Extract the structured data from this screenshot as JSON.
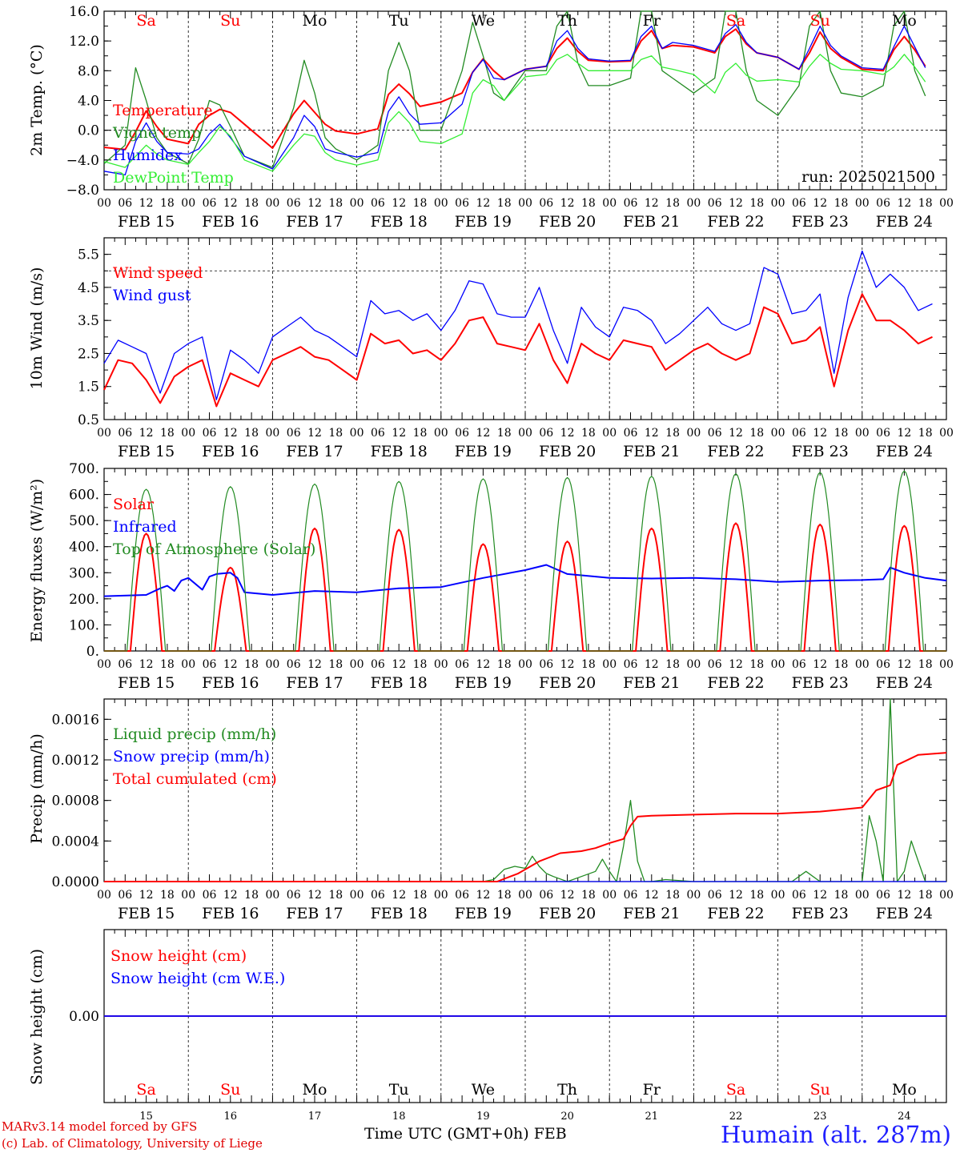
{
  "chart_data": [
    {
      "type": "line",
      "ylabel": "2m Temp. (°C)",
      "ylim": [
        -8,
        16
      ],
      "yticks": [
        "−8.0",
        "−4.0",
        "0.0",
        "4.0",
        "8.0",
        "12.0",
        "16.0"
      ],
      "annotation": "run: 2025021500",
      "day_labels": [
        "Sa",
        "Su",
        "Mo",
        "Tu",
        "We",
        "Th",
        "Fr",
        "Sa",
        "Su",
        "Mo"
      ],
      "x": [
        0,
        6,
        9,
        12,
        15,
        18,
        24,
        27,
        30,
        33,
        36,
        40,
        48,
        54,
        57,
        60,
        63,
        66,
        72,
        78,
        81,
        84,
        87,
        90,
        96,
        102,
        105,
        108,
        111,
        114,
        120,
        126,
        129,
        132,
        135,
        138,
        144,
        150,
        153,
        156,
        159,
        162,
        168,
        174,
        177,
        180,
        183,
        186,
        192,
        198,
        201,
        204,
        207,
        210,
        216,
        222,
        225,
        228,
        231,
        234
      ],
      "series": [
        {
          "name": "Temperature",
          "color": "#ff0000",
          "values": [
            -2.3,
            -2.6,
            -0.2,
            2.6,
            0.5,
            -1.2,
            -1.8,
            0.8,
            2.0,
            2.8,
            2.4,
            0.8,
            -2.4,
            2.2,
            4.0,
            2.4,
            0.8,
            -0.1,
            -0.5,
            0.2,
            4.8,
            6.2,
            4.9,
            3.2,
            3.8,
            5.0,
            7.8,
            9.6,
            8.0,
            6.8,
            8.2,
            8.6,
            11.0,
            12.4,
            10.6,
            9.4,
            9.2,
            9.3,
            12.0,
            13.4,
            11.0,
            11.4,
            11.2,
            10.4,
            12.6,
            13.6,
            11.6,
            10.4,
            9.8,
            8.2,
            10.4,
            13.2,
            11.0,
            9.8,
            8.2,
            8.0,
            10.8,
            12.6,
            10.8,
            8.6
          ]
        },
        {
          "name": "Vigne temp",
          "color": "#228b22",
          "values": [
            -4.5,
            -2.0,
            8.4,
            4.0,
            -1.0,
            -3.0,
            -4.5,
            -1.2,
            4.0,
            3.4,
            0.5,
            -3.5,
            -5.0,
            3.0,
            9.4,
            5.0,
            -1.0,
            -2.5,
            -4.0,
            -2.0,
            8.0,
            11.8,
            8.0,
            0.0,
            0.0,
            8.0,
            14.5,
            10.0,
            5.0,
            4.0,
            8.0,
            8.0,
            14.0,
            18.0,
            9.0,
            6.0,
            6.0,
            7.0,
            16.0,
            18.0,
            8.0,
            7.0,
            5.0,
            7.0,
            16.0,
            18.0,
            8.0,
            4.0,
            2.0,
            6.0,
            14.0,
            18.0,
            8.0,
            5.0,
            4.5,
            6.0,
            14.0,
            17.0,
            8.0,
            4.6
          ]
        },
        {
          "name": "Humidex",
          "color": "#0000ff",
          "values": [
            -5.5,
            -6.0,
            -1.5,
            1.0,
            -1.5,
            -3.0,
            -3.2,
            -2.5,
            -0.5,
            0.8,
            -1.0,
            -3.5,
            -5.2,
            -1.0,
            2.0,
            0.5,
            -2.5,
            -3.0,
            -3.6,
            -3.0,
            2.5,
            4.5,
            2.2,
            0.8,
            1.0,
            3.5,
            7.8,
            9.5,
            7.0,
            6.8,
            8.2,
            8.6,
            12.0,
            13.4,
            11.0,
            9.6,
            9.3,
            9.4,
            12.6,
            14.0,
            11.0,
            11.8,
            11.4,
            10.6,
            13.0,
            14.2,
            11.8,
            10.4,
            9.8,
            8.2,
            11.0,
            14.0,
            11.4,
            10.0,
            8.4,
            8.2,
            11.2,
            14.0,
            11.2,
            8.4
          ]
        },
        {
          "name": "DewPoint Temp",
          "color": "#33ee33",
          "values": [
            -4.2,
            -5.0,
            -3.5,
            -2.0,
            -3.2,
            -4.0,
            -4.6,
            -3.0,
            -1.5,
            0.5,
            -0.8,
            -4.0,
            -5.5,
            -2.0,
            -0.5,
            -0.8,
            -3.0,
            -4.0,
            -4.7,
            -4.0,
            1.0,
            2.5,
            1.0,
            -1.5,
            -1.8,
            -0.5,
            5.0,
            6.8,
            6.0,
            4.0,
            7.2,
            7.5,
            9.5,
            10.2,
            9.0,
            8.0,
            8.0,
            8.0,
            9.5,
            10.0,
            8.5,
            8.2,
            7.5,
            5.0,
            7.8,
            9.0,
            7.4,
            6.6,
            6.8,
            6.5,
            8.6,
            10.2,
            9.0,
            8.2,
            8.0,
            7.5,
            8.5,
            10.2,
            8.5,
            6.5
          ]
        }
      ]
    },
    {
      "type": "line",
      "ylabel": "10m Wind (m/s)",
      "ylim": [
        0.5,
        6
      ],
      "yticks": [
        "0.5",
        "1.5",
        "2.5",
        "3.5",
        "4.5",
        "5.5"
      ],
      "x": [
        0,
        4,
        8,
        12,
        16,
        20,
        24,
        28,
        32,
        36,
        40,
        44,
        48,
        52,
        56,
        60,
        64,
        68,
        72,
        76,
        80,
        84,
        88,
        92,
        96,
        100,
        104,
        108,
        112,
        116,
        120,
        124,
        128,
        132,
        136,
        140,
        144,
        148,
        152,
        156,
        160,
        164,
        168,
        172,
        176,
        180,
        184,
        188,
        192,
        196,
        200,
        204,
        208,
        212,
        216,
        220,
        224,
        228,
        232,
        236
      ],
      "series": [
        {
          "name": "Wind speed",
          "color": "#ff0000",
          "values": [
            1.4,
            2.3,
            2.2,
            1.7,
            1.0,
            1.8,
            2.1,
            2.3,
            0.9,
            1.9,
            1.7,
            1.5,
            2.3,
            2.5,
            2.7,
            2.4,
            2.3,
            2.0,
            1.7,
            3.1,
            2.8,
            2.9,
            2.5,
            2.6,
            2.3,
            2.8,
            3.5,
            3.6,
            2.8,
            2.7,
            2.6,
            3.4,
            2.3,
            1.6,
            2.8,
            2.5,
            2.3,
            2.9,
            2.8,
            2.7,
            2.0,
            2.3,
            2.6,
            2.8,
            2.5,
            2.3,
            2.5,
            3.9,
            3.7,
            2.8,
            2.9,
            3.3,
            1.5,
            3.2,
            4.3,
            3.5,
            3.5,
            3.2,
            2.8,
            3.0
          ]
        },
        {
          "name": "Wind gust",
          "color": "#0000ff",
          "values": [
            2.2,
            2.9,
            2.7,
            2.5,
            1.3,
            2.5,
            2.8,
            3.0,
            1.1,
            2.6,
            2.3,
            1.9,
            3.0,
            3.3,
            3.6,
            3.2,
            3.0,
            2.7,
            2.4,
            4.1,
            3.7,
            3.8,
            3.5,
            3.7,
            3.2,
            3.8,
            4.7,
            4.6,
            3.7,
            3.6,
            3.6,
            4.5,
            3.2,
            2.2,
            3.9,
            3.3,
            3.0,
            3.9,
            3.8,
            3.5,
            2.8,
            3.1,
            3.5,
            3.9,
            3.4,
            3.2,
            3.4,
            5.1,
            4.9,
            3.7,
            3.8,
            4.3,
            1.9,
            4.2,
            5.6,
            4.5,
            4.9,
            4.5,
            3.8,
            4.0
          ]
        }
      ]
    },
    {
      "type": "line",
      "ylabel": "Energy fluxes (W/m²)",
      "ylim": [
        0,
        700
      ],
      "yticks": [
        "0.",
        "100.",
        "200.",
        "300.",
        "400.",
        "500.",
        "600.",
        "700."
      ],
      "series": [
        {
          "name": "Solar",
          "color": "#ff0000",
          "day_peaks": [
            450,
            320,
            470,
            465,
            410,
            420,
            470,
            490,
            485,
            480
          ]
        },
        {
          "name": "Infrared",
          "color": "#0000ff",
          "x": [
            0,
            12,
            16,
            18,
            20,
            22,
            24,
            28,
            30,
            32,
            36,
            38,
            40,
            48,
            60,
            72,
            84,
            96,
            108,
            120,
            126,
            132,
            144,
            156,
            168,
            180,
            192,
            204,
            216,
            222,
            224,
            228,
            234,
            240
          ],
          "values": [
            210,
            215,
            240,
            250,
            230,
            270,
            280,
            235,
            285,
            295,
            300,
            280,
            225,
            215,
            230,
            225,
            240,
            245,
            280,
            310,
            330,
            295,
            280,
            278,
            280,
            275,
            265,
            270,
            272,
            275,
            320,
            300,
            280,
            270
          ]
        },
        {
          "name": "Top of Atmosphere (Solar)",
          "color": "#228b22",
          "day_peaks": [
            620,
            630,
            640,
            650,
            660,
            665,
            670,
            680,
            685,
            690
          ]
        }
      ]
    },
    {
      "type": "line",
      "ylabel": "Precip (mm/h)",
      "ylim": [
        0,
        0.0018
      ],
      "yticks": [
        "0.0000",
        "0.0004",
        "0.0008",
        "0.0012",
        "0.0016"
      ],
      "series": [
        {
          "name": "Liquid precip (mm/h)",
          "color": "#228b22",
          "x": [
            0,
            108,
            111,
            114,
            117,
            120,
            122,
            124,
            126,
            128,
            132,
            136,
            140,
            142,
            144,
            146,
            148,
            150,
            152,
            154,
            156,
            160,
            168,
            180,
            196,
            200,
            204,
            216,
            218,
            220,
            222,
            224,
            226,
            228,
            230,
            232,
            234,
            240
          ],
          "values": [
            0,
            0,
            2e-05,
            0.00012,
            0.00015,
            0.00013,
            0.00025,
            0.00015,
            8e-05,
            5e-05,
            0.0,
            5e-05,
            0.0001,
            0.00022,
            0.0001,
            0.0,
            0.00035,
            0.0008,
            0.0002,
            0.0,
            0.0,
            2e-05,
            0,
            0,
            0.0,
            0.0001,
            0.0,
            0.0,
            0.00065,
            0.0004,
            0.0,
            0.0018,
            0.0,
            0.0001,
            0.0004,
            0.0002,
            0.0,
            0
          ]
        },
        {
          "name": "Snow precip (mm/h)",
          "color": "#0000ff",
          "x": [
            0,
            240
          ],
          "values": [
            0,
            0
          ]
        },
        {
          "name": "Total cumulated (cm)",
          "color": "#ff0000",
          "x": [
            0,
            112,
            118,
            124,
            130,
            136,
            140,
            144,
            148,
            150,
            152,
            156,
            168,
            180,
            192,
            204,
            210,
            216,
            220,
            224,
            226,
            232,
            240
          ],
          "values": [
            0,
            0,
            8e-05,
            0.0002,
            0.00028,
            0.0003,
            0.00033,
            0.00038,
            0.00042,
            0.00055,
            0.00064,
            0.00065,
            0.00066,
            0.00067,
            0.00067,
            0.00069,
            0.00071,
            0.00073,
            0.0009,
            0.00095,
            0.00115,
            0.00125,
            0.00127
          ]
        }
      ]
    },
    {
      "type": "line",
      "ylabel": "Snow height (cm)",
      "yticks": [
        "0.00"
      ],
      "series": [
        {
          "name": "Snow height (cm)",
          "color": "#ff0000",
          "x": [
            0,
            240
          ],
          "values": [
            0,
            0
          ]
        },
        {
          "name": "Snow height (cm W.E.)",
          "color": "#0000ff",
          "x": [
            0,
            240
          ],
          "values": [
            0,
            0
          ]
        }
      ]
    }
  ],
  "x_axis": {
    "hour_ticks": [
      "00",
      "06",
      "12",
      "18"
    ],
    "date_labels": [
      "FEB 15",
      "FEB 16",
      "FEB 17",
      "FEB 18",
      "FEB 19",
      "FEB 20",
      "FEB 21",
      "FEB 22",
      "FEB 23",
      "FEB 24"
    ],
    "day_numbers": [
      "15",
      "16",
      "17",
      "18",
      "19",
      "20",
      "21",
      "22",
      "23",
      "24"
    ],
    "day_names": [
      "Sa",
      "Su",
      "Mo",
      "Tu",
      "We",
      "Th",
      "Fr",
      "Sa",
      "Su",
      "Mo"
    ]
  },
  "colors": {
    "weekend": "#ff0000",
    "weekday": "#000000"
  },
  "footer": {
    "credit_line1": "MARv3.14 model forced by GFS",
    "credit_line2": "(c) Lab. of Climatology, University of Liege",
    "x_title": "Time UTC (GMT+0h) FEB",
    "station": "Humain (alt. 287m)"
  }
}
